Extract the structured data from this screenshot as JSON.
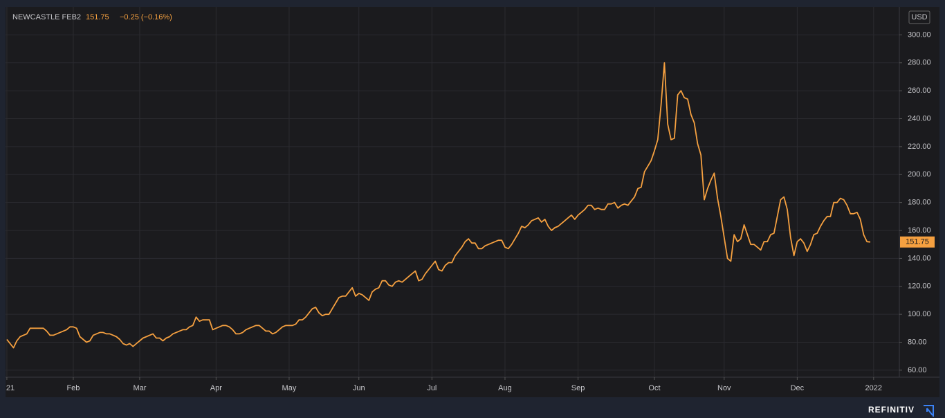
{
  "chart_data": {
    "type": "line",
    "instrument": "NEWCASTLE FEB2",
    "last_value": 151.75,
    "change": "−0.25 (−0.16%)",
    "currency": "USD",
    "brand": "REFINITIV",
    "color": "#f5a040",
    "grid": true,
    "ylim": [
      55,
      320
    ],
    "yticks": [
      {
        "value": 60,
        "label": "60.00"
      },
      {
        "value": 80,
        "label": "80.00"
      },
      {
        "value": 100,
        "label": "100.00"
      },
      {
        "value": 120,
        "label": "120.00"
      },
      {
        "value": 140,
        "label": "140.00"
      },
      {
        "value": 160,
        "label": "160.00"
      },
      {
        "value": 180,
        "label": "180.00"
      },
      {
        "value": 200,
        "label": "200.00"
      },
      {
        "value": 220,
        "label": "220.00"
      },
      {
        "value": 240,
        "label": "240.00"
      },
      {
        "value": 260,
        "label": "260.00"
      },
      {
        "value": 280,
        "label": "280.00"
      },
      {
        "value": 300,
        "label": "300.00"
      }
    ],
    "xlim": [
      -0.4,
      268.75
    ],
    "xticks": [
      {
        "value": 0,
        "label": "21"
      },
      {
        "value": 20,
        "label": "Feb"
      },
      {
        "value": 40,
        "label": "Mar"
      },
      {
        "value": 63,
        "label": "Apr"
      },
      {
        "value": 85,
        "label": "May"
      },
      {
        "value": 106,
        "label": "Jun"
      },
      {
        "value": 128,
        "label": "Jul"
      },
      {
        "value": 150,
        "label": "Aug"
      },
      {
        "value": 172,
        "label": "Sep"
      },
      {
        "value": 195,
        "label": "Oct"
      },
      {
        "value": 216,
        "label": "Nov"
      },
      {
        "value": 238,
        "label": "Dec"
      },
      {
        "value": 261,
        "label": "2022"
      }
    ],
    "values": [
      82,
      79,
      76,
      81,
      84,
      85,
      86,
      90,
      90,
      90,
      90,
      90,
      88,
      85,
      85,
      86,
      87,
      88,
      89,
      91,
      91,
      90,
      84,
      82,
      80,
      81,
      85,
      86,
      87,
      87,
      86,
      86,
      85,
      84,
      82,
      79,
      78,
      79,
      77,
      79,
      81,
      83,
      84,
      85,
      86,
      83,
      83,
      81,
      83,
      84,
      86,
      87,
      88,
      89,
      89,
      91,
      92,
      98,
      95,
      96,
      96,
      96,
      89,
      90,
      91,
      92,
      92,
      91,
      89,
      86,
      86,
      87,
      89,
      90,
      91,
      92,
      92,
      90,
      88,
      88,
      86,
      87,
      89,
      91,
      92,
      92,
      92,
      93,
      96,
      96,
      98,
      101,
      104,
      105,
      101,
      99,
      100,
      100,
      104,
      108,
      112,
      113,
      113,
      116,
      119,
      113,
      115,
      114,
      112,
      110,
      116,
      118,
      119,
      124,
      124,
      121,
      120,
      123,
      124,
      123,
      125,
      127,
      129,
      131,
      124,
      125,
      129,
      132,
      135,
      138,
      132,
      131,
      135,
      137,
      137,
      142,
      145,
      148,
      152,
      154,
      151,
      151,
      147,
      147,
      149,
      150,
      151,
      152,
      153,
      153,
      148,
      147,
      150,
      154,
      158,
      163,
      162,
      164,
      167,
      168,
      169,
      166,
      168,
      163,
      160,
      162,
      163,
      165,
      167,
      169,
      171,
      168,
      171,
      173,
      175,
      178,
      178,
      175,
      176,
      175,
      175,
      179,
      179,
      180,
      176,
      178,
      179,
      178,
      181,
      184,
      190,
      191,
      202,
      206,
      210,
      217,
      225,
      250,
      280,
      236,
      225,
      226,
      257,
      260,
      255,
      254,
      243,
      237,
      222,
      214,
      182,
      190,
      196,
      201,
      183,
      170,
      155,
      140,
      138,
      157,
      152,
      154,
      164,
      157,
      150,
      150,
      148,
      146,
      152,
      152,
      157,
      158,
      170,
      182,
      184,
      175,
      155,
      142,
      152,
      154,
      151,
      145,
      150,
      157,
      158,
      163,
      167,
      170,
      170,
      180,
      180,
      183,
      182,
      178,
      172,
      172,
      173,
      168,
      157,
      152,
      151.75
    ]
  }
}
